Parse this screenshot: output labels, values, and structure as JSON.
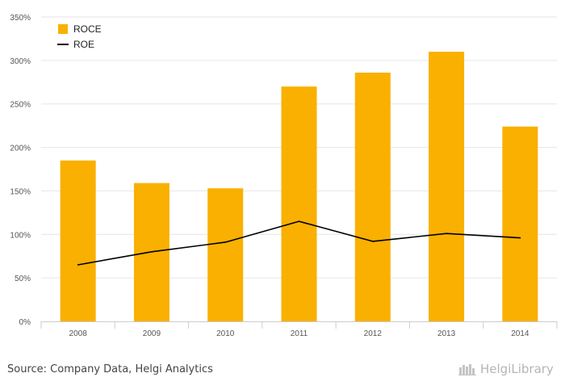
{
  "chart_data": {
    "type": "bar",
    "categories": [
      "2008",
      "2009",
      "2010",
      "2011",
      "2012",
      "2013",
      "2014"
    ],
    "series": [
      {
        "name": "ROCE",
        "type": "bar",
        "color": "#f9b000",
        "values": [
          185,
          159,
          153,
          270,
          286,
          310,
          224
        ]
      },
      {
        "name": "ROE",
        "type": "line",
        "color": "#000000",
        "values": [
          65,
          80,
          91,
          115,
          92,
          101,
          96
        ]
      }
    ],
    "y_ticks": [
      "0%",
      "50%",
      "100%",
      "150%",
      "200%",
      "250%",
      "300%",
      "350%"
    ],
    "ylim": [
      0,
      350
    ],
    "grid": true,
    "legend_position": "top-left"
  },
  "footer": {
    "source": "Source: Company Data, Helgi Analytics",
    "logo_text": "HelgiLibrary"
  }
}
